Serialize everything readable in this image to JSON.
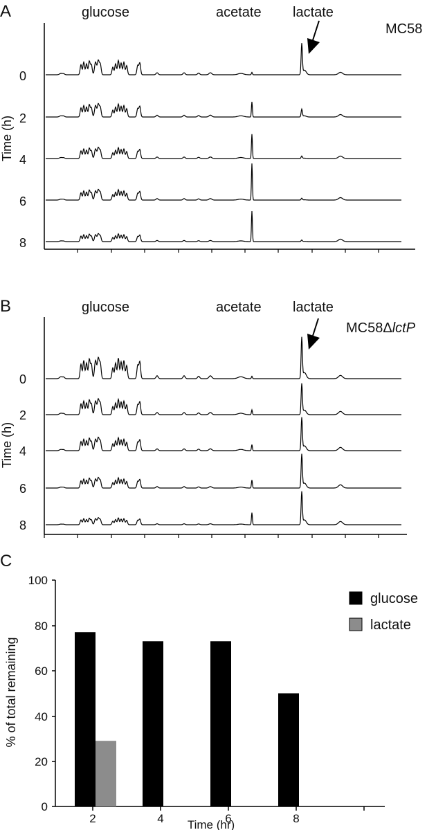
{
  "panels": [
    {
      "letter": "A",
      "strain": "MC58",
      "strain_italic": "",
      "peak_labels": {
        "glucose": "glucose",
        "acetate": "acetate",
        "lactate": "lactate"
      },
      "y_axis_label": "Time (h)",
      "time_labels": [
        "0",
        "2",
        "4",
        "6",
        "8"
      ],
      "trace_heights": {
        "glucose": [
          0.55,
          0.5,
          0.42,
          0.4,
          0.3
        ],
        "acetate": [
          0.08,
          0.5,
          0.8,
          1.2,
          1.0
        ],
        "lactate": [
          1.0,
          0.25,
          0.08,
          0.06,
          0.05
        ]
      }
    },
    {
      "letter": "B",
      "strain": "MC58Δ",
      "strain_italic": "lctP",
      "peak_labels": {
        "glucose": "glucose",
        "acetate": "acetate",
        "lactate": "lactate"
      },
      "y_axis_label": "Time (h)",
      "time_labels": [
        "0",
        "2",
        "4",
        "6",
        "8"
      ],
      "trace_heights": {
        "glucose": [
          0.6,
          0.45,
          0.38,
          0.3,
          0.2
        ],
        "acetate": [
          0.06,
          0.12,
          0.15,
          0.2,
          0.3
        ],
        "lactate": [
          1.0,
          0.75,
          0.8,
          0.82,
          0.8
        ]
      }
    }
  ],
  "chart_data": {
    "type": "bar",
    "panel_letter": "C",
    "categories": [
      "2",
      "4",
      "6",
      "8"
    ],
    "series": [
      {
        "name": "glucose",
        "values": [
          77,
          73,
          73,
          50
        ],
        "color": "#000000"
      },
      {
        "name": "lactate",
        "values": [
          29,
          0,
          0,
          0
        ],
        "color": "#8c8c8c"
      }
    ],
    "xlabel": "Time (hr)",
    "ylabel": "% of total remaining",
    "ylim": [
      0,
      100
    ],
    "yticks": [
      "0",
      "20",
      "40",
      "60",
      "80",
      "100"
    ],
    "grid": false,
    "legend_position": "top-right"
  }
}
